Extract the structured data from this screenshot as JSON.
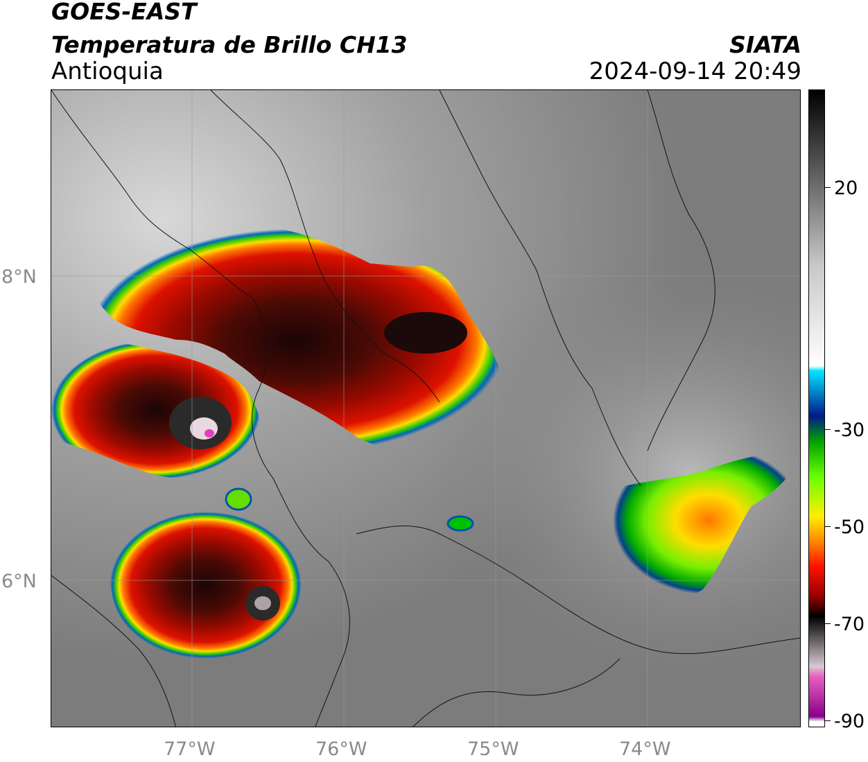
{
  "header": {
    "satellite": "GOES-EAST",
    "product": "Temperatura de Brillo CH13",
    "region": "Antioquia",
    "organization": "SIATA",
    "datetime": "2024-09-14 20:49"
  },
  "map": {
    "latitude_labels": [
      "8°N",
      "6°N"
    ],
    "longitude_labels": [
      "77°W",
      "76°W",
      "75°W",
      "74°W"
    ],
    "background": "grayscale infrared brightness temperature",
    "storm_colors": {
      "coldest_core": "#e070c0",
      "very_cold": "#1a0a0a",
      "cold": "#cc1100",
      "moderate": "#ffcc00",
      "warm_edge": "#00c000",
      "edge": "#0055aa"
    }
  },
  "colorbar": {
    "tick_labels": [
      "20",
      "-30",
      "-50",
      "-70",
      "-90"
    ],
    "stops": [
      {
        "value": 35,
        "color": "#000000"
      },
      {
        "value": 20,
        "color": "#555555"
      },
      {
        "value": 0,
        "color": "#c8c8c8"
      },
      {
        "value": -20,
        "color": "#ffffff"
      },
      {
        "value": -21,
        "color": "#00e5ff"
      },
      {
        "value": -30,
        "color": "#001a8c"
      },
      {
        "value": -35,
        "color": "#00a000"
      },
      {
        "value": -42,
        "color": "#66ff00"
      },
      {
        "value": -50,
        "color": "#ffee00"
      },
      {
        "value": -55,
        "color": "#ff8800"
      },
      {
        "value": -60,
        "color": "#ff1100"
      },
      {
        "value": -66,
        "color": "#990000"
      },
      {
        "value": -70,
        "color": "#000000"
      },
      {
        "value": -80,
        "color": "#d8c8d0"
      },
      {
        "value": -82,
        "color": "#e860c0"
      },
      {
        "value": -90,
        "color": "#8a008a"
      },
      {
        "value": -91,
        "color": "#ffffff"
      }
    ]
  }
}
